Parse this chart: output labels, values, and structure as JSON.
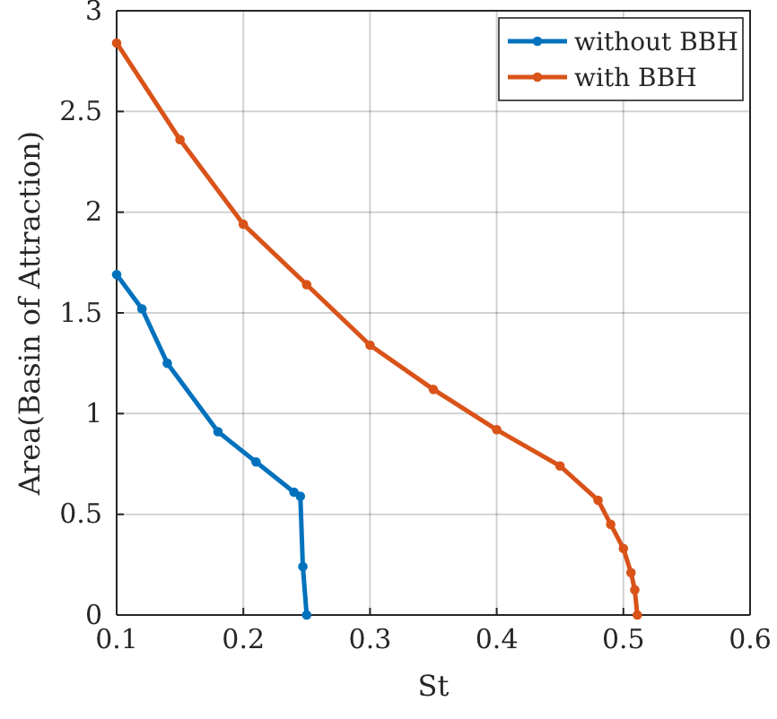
{
  "chart_data": {
    "type": "line",
    "xlabel": "St",
    "ylabel": "Area(Basin of Attraction)",
    "xlim": [
      0.1,
      0.6
    ],
    "xticks": [
      0.1,
      0.2,
      0.3,
      0.4,
      0.5,
      0.6
    ],
    "ylim": [
      0,
      3
    ],
    "yticks": [
      0,
      0.5,
      1,
      1.5,
      2,
      2.5,
      3
    ],
    "grid": true,
    "legend": "top right",
    "marker": "circle",
    "line_style": "solid",
    "series": [
      {
        "name": "without BBH",
        "color": "#0072bd",
        "x": [
          0.1,
          0.12,
          0.14,
          0.18,
          0.21,
          0.24,
          0.245,
          0.247,
          0.25
        ],
        "values": [
          1.69,
          1.52,
          1.25,
          0.91,
          0.76,
          0.61,
          0.59,
          0.24,
          0
        ]
      },
      {
        "name": "with BBH",
        "color": "#d95319",
        "x": [
          0.1,
          0.15,
          0.2,
          0.25,
          0.3,
          0.35,
          0.4,
          0.45,
          0.48,
          0.49,
          0.5,
          0.506,
          0.509,
          0.511
        ],
        "values": [
          2.84,
          2.36,
          1.94,
          1.64,
          1.34,
          1.12,
          0.92,
          0.74,
          0.57,
          0.45,
          0.33,
          0.21,
          0.125,
          0
        ]
      }
    ]
  }
}
